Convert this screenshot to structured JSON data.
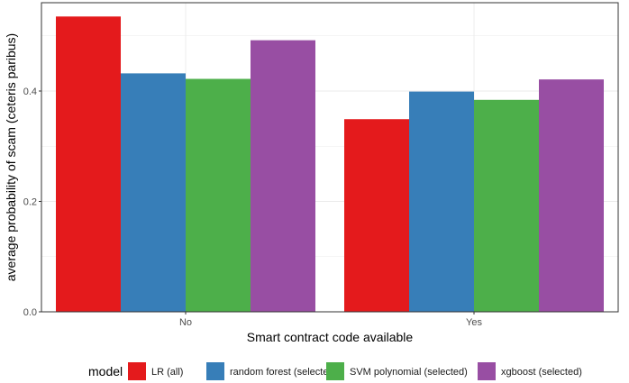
{
  "chart_data": {
    "type": "bar",
    "categories": [
      "No",
      "Yes"
    ],
    "series": [
      {
        "name": "LR (all)",
        "color": "#e41a1c",
        "values": [
          0.535,
          0.349
        ]
      },
      {
        "name": "random forest (selected)",
        "color": "#377eb8",
        "values": [
          0.432,
          0.399
        ]
      },
      {
        "name": "SVM polynomial (selected)",
        "color": "#4daf4a",
        "values": [
          0.422,
          0.384
        ]
      },
      {
        "name": "xgboost (selected)",
        "color": "#984ea3",
        "values": [
          0.492,
          0.421
        ]
      }
    ],
    "xlabel": "Smart contract code available",
    "ylabel": "average probability of scam (ceteris paribus)",
    "ylim": [
      0,
      0.56
    ],
    "yticks": [
      0.0,
      0.2,
      0.4
    ],
    "ytick_labels": [
      "0.0",
      "0.2",
      "0.4"
    ],
    "legend_title": "model",
    "legend_position": "bottom",
    "grid": true
  }
}
